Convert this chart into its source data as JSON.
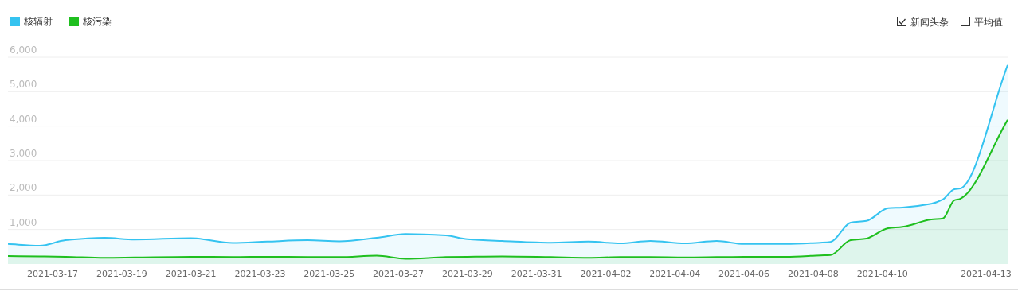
{
  "chart_data": {
    "type": "area",
    "x": [
      "2021-03-15T17:00",
      "2021-03-16T15:00",
      "2021-03-17T09:00",
      "2021-03-18T12:00",
      "2021-03-19T09:00",
      "2021-03-21T00:00",
      "2021-03-22T05:00",
      "2021-03-23T05:00",
      "2021-03-24T09:00",
      "2021-03-25T07:00",
      "2021-03-26T09:00",
      "2021-03-27T05:00",
      "2021-03-28T09:00",
      "2021-03-29T00:00",
      "2021-03-30T00:00",
      "2021-03-31T10:00",
      "2021-04-01T12:00",
      "2021-04-02T10:00",
      "2021-04-03T07:00",
      "2021-04-04T07:00",
      "2021-04-05T05:00",
      "2021-04-06T00:00",
      "2021-04-07T05:00",
      "2021-04-08T05:00",
      "2021-04-08T12:00",
      "2021-04-09T02:00",
      "2021-04-09T13:00",
      "2021-04-10T04:00",
      "2021-04-10T14:00",
      "2021-04-11T10:00",
      "2021-04-11T18:00",
      "2021-04-12T02:00",
      "2021-04-12T06:00",
      "2021-04-13T15:00"
    ],
    "series": [
      {
        "name": "核辐射",
        "color": "#35c3f0",
        "values": [
          580,
          530,
          690,
          760,
          710,
          750,
          610,
          650,
          690,
          660,
          760,
          870,
          830,
          720,
          670,
          620,
          650,
          600,
          670,
          600,
          670,
          580,
          580,
          620,
          640,
          1200,
          1250,
          1620,
          1640,
          1750,
          1870,
          2170,
          2190,
          5770
        ]
      },
      {
        "name": "核污染",
        "color": "#1fbf1f",
        "values": [
          230,
          220,
          210,
          180,
          190,
          210,
          200,
          210,
          200,
          200,
          240,
          150,
          200,
          210,
          220,
          200,
          180,
          200,
          200,
          190,
          200,
          210,
          210,
          250,
          260,
          690,
          740,
          1040,
          1080,
          1290,
          1320,
          1850,
          1890,
          4180
        ]
      }
    ],
    "xlim": [
      "2021-03-15T17:00",
      "2021-04-13T15:00"
    ],
    "xticks": [
      "2021-03-17",
      "2021-03-19",
      "2021-03-21",
      "2021-03-23",
      "2021-03-25",
      "2021-03-27",
      "2021-03-29",
      "2021-03-31",
      "2021-04-02",
      "2021-04-04",
      "2021-04-06",
      "2021-04-08",
      "2021-04-10",
      "2021-04-13"
    ],
    "ylim": [
      0,
      6000
    ],
    "yticks": [
      {
        "value": 1000,
        "label": "1,000"
      },
      {
        "value": 2000,
        "label": "2,000"
      },
      {
        "value": 3000,
        "label": "3,000"
      },
      {
        "value": 4000,
        "label": "4,000"
      },
      {
        "value": 5000,
        "label": "5,000"
      },
      {
        "value": 6000,
        "label": "6,000"
      }
    ],
    "grid": "y",
    "legend": "top left",
    "annotations": [
      "新闻头条",
      "平均值"
    ]
  }
}
